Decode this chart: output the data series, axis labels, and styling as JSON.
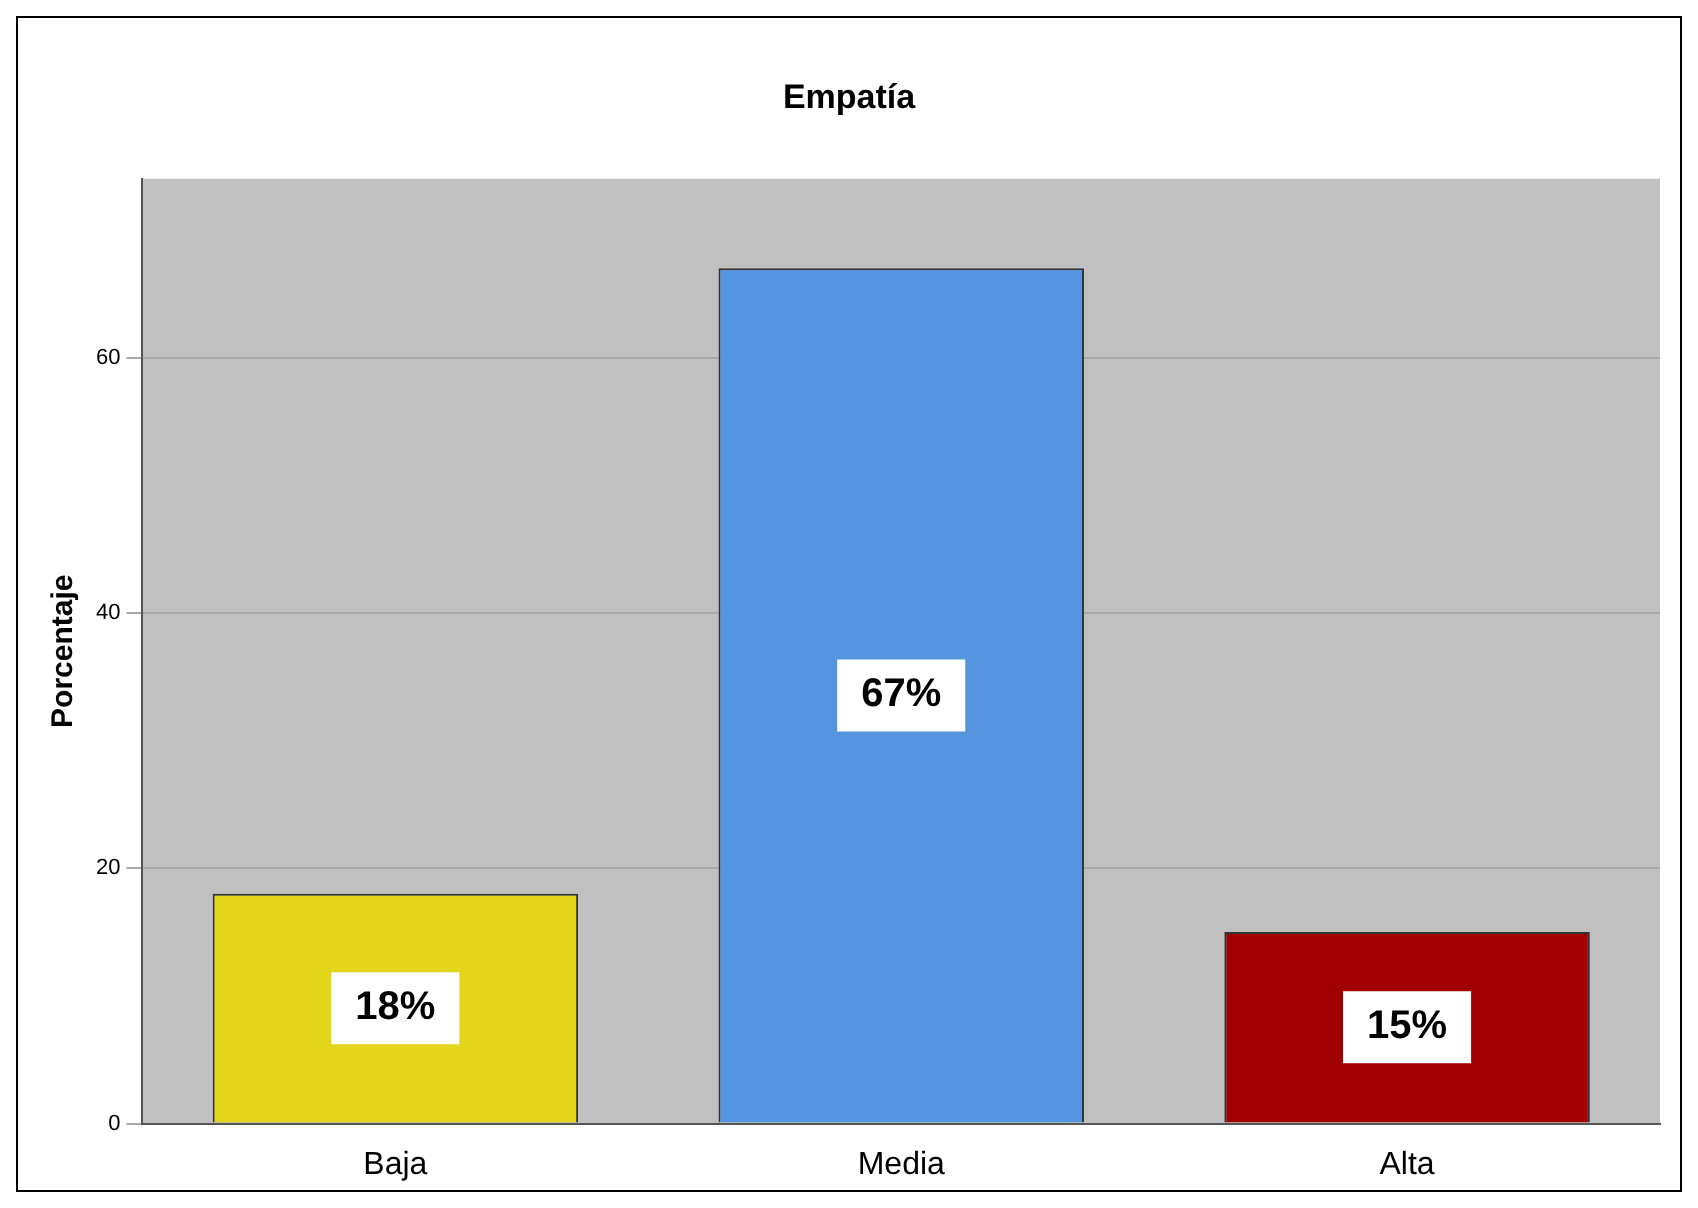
{
  "chart_data": {
    "type": "bar",
    "title": "Empatía",
    "ylabel": "Porcentaje",
    "categories": [
      "Baja",
      "Media",
      "Alta"
    ],
    "values": [
      18,
      67,
      15
    ],
    "colors": [
      "#e3d51a",
      "#5595e0",
      "#a00000"
    ],
    "value_labels": [
      "18%",
      "67%",
      "15%"
    ],
    "ylim": [
      0,
      74
    ],
    "yticks": [
      0,
      20,
      40,
      60
    ],
    "grid": "y",
    "legend": false
  }
}
